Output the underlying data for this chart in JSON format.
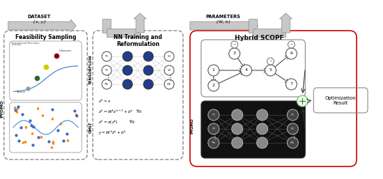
{
  "panel1_title": "Feasibility Sampling",
  "panel2_title": "NN Training and\nReformulation",
  "panel3_title": "Hybrid SCOPF",
  "label_tensorflow": "TENSORFLOW",
  "label_omlt": "OMLT",
  "label_pyomo_left": "PYOMO",
  "label_pyomo_right": "PYOMO",
  "arrow_label1_line1": "DATASET",
  "arrow_label1_line2": "{x, y}",
  "arrow_label2_line1": "PARAMETERS",
  "arrow_label2_line2": "{W, b}",
  "opt_result": "Optimization\nResult",
  "bg_color": "#ffffff",
  "panel_border_color": "#888888",
  "panel3_border_color": "#cc0000",
  "node_blue": "#1f3d8c",
  "node_gray": "#aaaaaa",
  "node_white": "#ffffff",
  "node_dark": "#333333",
  "arrow_fill": "#c8c8c8",
  "arrow_edge": "#888888"
}
